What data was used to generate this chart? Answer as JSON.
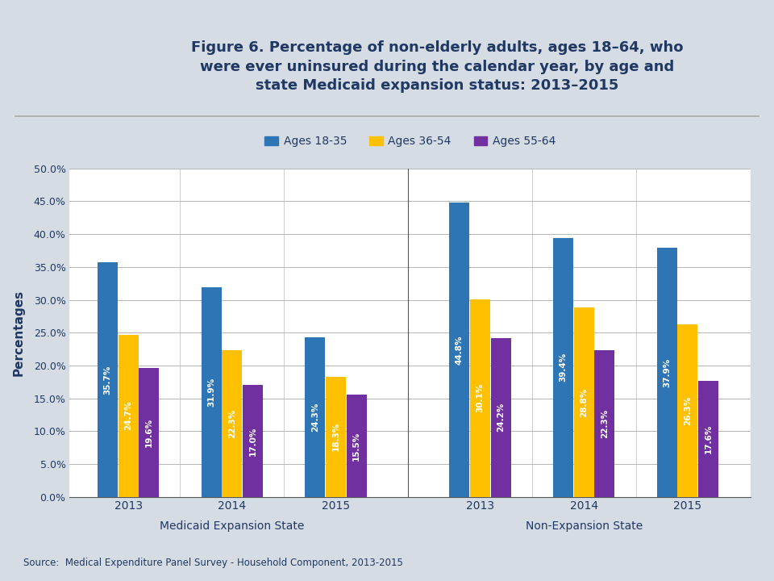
{
  "title": "Figure 6. Percentage of non-elderly adults, ages 18–64, who\nwere ever uninsured during the calendar year, by age and\nstate Medicaid expansion status: 2013–2015",
  "ylabel": "Percentages",
  "source": "Source:  Medical Expenditure Panel Survey - Household Component, 2013-2015",
  "groups": [
    "Medicaid Expansion State",
    "Non-Expansion State"
  ],
  "years": [
    "2013",
    "2014",
    "2015"
  ],
  "legend_labels": [
    "Ages 18-35",
    "Ages 36-54",
    "Ages 55-64"
  ],
  "bar_colors": [
    "#2E75B6",
    "#FFC000",
    "#7030A0"
  ],
  "data": {
    "Medicaid Expansion State": {
      "2013": [
        35.7,
        24.7,
        19.6
      ],
      "2014": [
        31.9,
        22.3,
        17.0
      ],
      "2015": [
        24.3,
        18.3,
        15.5
      ]
    },
    "Non-Expansion State": {
      "2013": [
        44.8,
        30.1,
        24.2
      ],
      "2014": [
        39.4,
        28.8,
        22.3
      ],
      "2015": [
        37.9,
        26.3,
        17.6
      ]
    }
  },
  "ylim": [
    0,
    50
  ],
  "yticks": [
    0,
    5,
    10,
    15,
    20,
    25,
    30,
    35,
    40,
    45,
    50
  ],
  "ytick_labels": [
    "0.0%",
    "5.0%",
    "10.0%",
    "15.0%",
    "20.0%",
    "25.0%",
    "30.0%",
    "35.0%",
    "40.0%",
    "45.0%",
    "50.0%"
  ],
  "title_color": "#1F3864",
  "ylabel_color": "#1F3864",
  "group_label_color": "#1F3864",
  "bar_text_color": "#FFFFFF",
  "legend_text_color": "#1F3864",
  "source_color": "#1F3864",
  "xtick_color": "#1F3864",
  "ytick_color": "#1F3864",
  "background_color": "#FFFFFF",
  "header_bg": "#D6DCE4",
  "plot_bg": "#FFFFFF",
  "bar_width": 0.23,
  "group1_centers": [
    1.1,
    2.25,
    3.4
  ],
  "group2_centers": [
    5.0,
    6.15,
    7.3
  ],
  "separator_x": 4.2,
  "xlim": [
    0.45,
    8.0
  ]
}
